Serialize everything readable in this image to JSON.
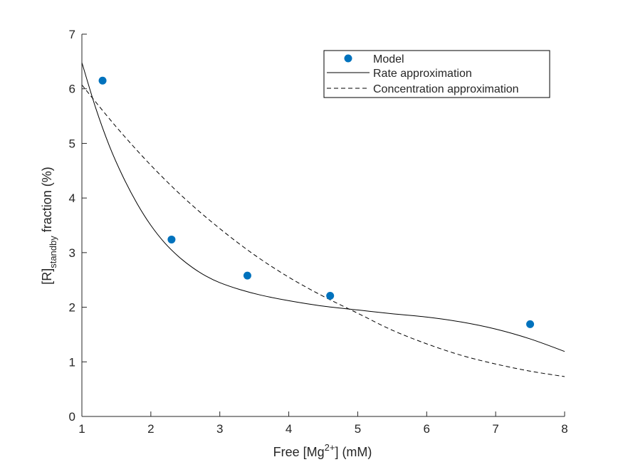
{
  "chart_data": {
    "type": "scatter",
    "xlabel": {
      "prefix": "Free [Mg",
      "sup": "2+",
      "suffix": "] (mM)"
    },
    "ylabel": {
      "prefix": "[R]",
      "sub": "standby",
      "suffix": " fraction (%)"
    },
    "xlim": [
      1,
      8
    ],
    "ylim": [
      0,
      7
    ],
    "xticks": [
      1,
      2,
      3,
      4,
      5,
      6,
      7,
      8
    ],
    "yticks": [
      0,
      1,
      2,
      3,
      4,
      5,
      6,
      7
    ],
    "grid": false,
    "legend_position": "top-right",
    "series": [
      {
        "name": "Model",
        "kind": "markers",
        "color": "#0072bd",
        "x": [
          1.3,
          2.3,
          3.4,
          4.6,
          7.5
        ],
        "y": [
          6.15,
          3.24,
          2.58,
          2.21,
          1.69
        ]
      },
      {
        "name": "Rate approximation",
        "kind": "solid-line",
        "color": "#000000",
        "x": [
          1.0,
          1.2,
          1.4,
          1.6,
          1.8,
          2.0,
          2.2,
          2.4,
          2.6,
          2.8,
          3.0,
          3.3,
          3.6,
          4.0,
          4.5,
          5.0,
          5.5,
          6.0,
          6.5,
          7.0,
          7.5,
          8.0
        ],
        "y": [
          6.48,
          5.65,
          4.95,
          4.38,
          3.9,
          3.5,
          3.18,
          2.93,
          2.73,
          2.57,
          2.45,
          2.32,
          2.22,
          2.12,
          2.02,
          1.95,
          1.88,
          1.82,
          1.73,
          1.6,
          1.42,
          1.19
        ]
      },
      {
        "name": "Concentration approximation",
        "kind": "dashed-line",
        "color": "#000000",
        "x": [
          1.0,
          1.5,
          2.0,
          2.5,
          3.0,
          3.5,
          4.0,
          4.5,
          5.0,
          5.5,
          6.0,
          6.5,
          7.0,
          7.5,
          8.0
        ],
        "y": [
          6.07,
          5.3,
          4.6,
          3.98,
          3.44,
          2.96,
          2.55,
          2.2,
          1.89,
          1.58,
          1.33,
          1.12,
          0.96,
          0.83,
          0.73
        ]
      }
    ]
  }
}
